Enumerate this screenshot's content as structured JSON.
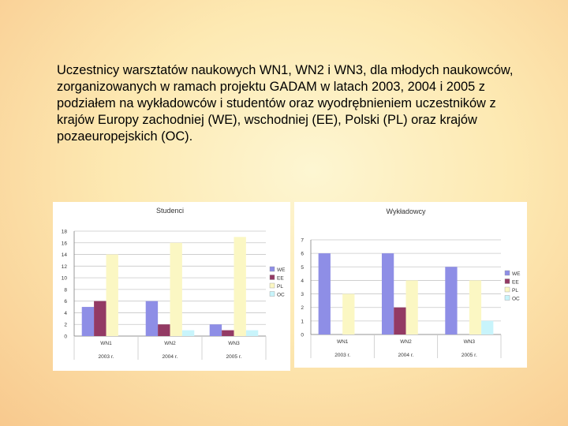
{
  "caption": "Uczestnicy warsztatów naukowych WN1, WN2 i WN3, dla młodych naukowców, zorganizowanych w ramach projektu GADAM w latach 2003, 2004 i 2005 z podziałem na wykładowców i studentów oraz wyodrębnieniem uczestników z krajów Europy zachodniej (WE), wschodniej (EE), Polski (PL) oraz krajów pozaeuropejskich (OC).",
  "colors": {
    "WE": "#8e8ee6",
    "EE": "#933a64",
    "PL": "#fbf7c3",
    "OC": "#c8f4fb",
    "grid": "#c8c8c8",
    "text": "#333333"
  },
  "chart_data": [
    {
      "type": "bar",
      "title": "Studenci",
      "categories": [
        "WN1",
        "WN2",
        "WN3"
      ],
      "years": [
        "2003 r.",
        "2004 r.",
        "2005 r."
      ],
      "series": [
        {
          "name": "WE",
          "values": [
            5,
            6,
            2
          ]
        },
        {
          "name": "EE",
          "values": [
            6,
            2,
            1
          ]
        },
        {
          "name": "PL",
          "values": [
            14,
            16,
            17
          ]
        },
        {
          "name": "OC",
          "values": [
            0,
            1,
            1
          ]
        }
      ],
      "ylim": [
        0,
        18
      ],
      "yticks": [
        0,
        2,
        4,
        6,
        8,
        10,
        12,
        14,
        16,
        18
      ],
      "xlabel": "",
      "ylabel": "",
      "legend": "right"
    },
    {
      "type": "bar",
      "title": "Wykładowcy",
      "categories": [
        "WN1",
        "WN2",
        "WN3"
      ],
      "years": [
        "2003 r.",
        "2004 r.",
        "2005 r."
      ],
      "series": [
        {
          "name": "WE",
          "values": [
            6,
            6,
            5
          ]
        },
        {
          "name": "EE",
          "values": [
            0,
            2,
            0
          ]
        },
        {
          "name": "PL",
          "values": [
            3,
            4,
            4
          ]
        },
        {
          "name": "OC",
          "values": [
            0,
            0,
            1
          ]
        }
      ],
      "ylim": [
        0,
        7
      ],
      "yticks": [
        0,
        1,
        2,
        3,
        4,
        5,
        6,
        7
      ],
      "xlabel": "",
      "ylabel": "",
      "legend": "right"
    }
  ]
}
